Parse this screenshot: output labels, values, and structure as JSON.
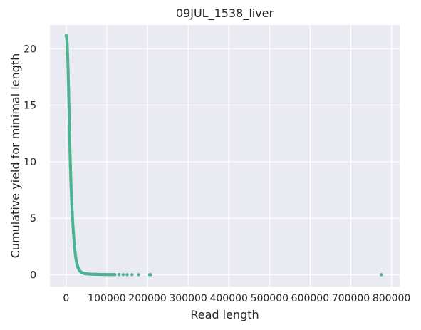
{
  "chart_data": {
    "type": "scatter",
    "title": "09JUL_1538_liver",
    "xlabel": "Read length",
    "ylabel": "Cumulative yield for minimal length",
    "xlim": [
      -40000,
      820000
    ],
    "ylim": [
      -1.05,
      22.1
    ],
    "x_ticks": [
      0,
      100000,
      200000,
      300000,
      400000,
      500000,
      600000,
      700000,
      800000
    ],
    "y_ticks": [
      0,
      5,
      10,
      15,
      20
    ],
    "grid": true,
    "background": "#eaeaf2",
    "grid_color": "#ffffff",
    "marker_color": "#4cb391",
    "series": [
      {
        "x": [
          0,
          500,
          1000,
          1500,
          2000,
          2500,
          3000,
          3500,
          4000,
          4500,
          5000,
          5500,
          6000,
          6500,
          7000,
          7500,
          8000,
          8500,
          9000,
          9500,
          10000,
          10500,
          11000,
          11500,
          12000,
          13000,
          14000,
          15000,
          16000,
          17000,
          18000,
          19000,
          20000,
          21000,
          22000,
          23000,
          24000,
          25000,
          26000,
          27000,
          28000,
          29000,
          30000,
          32000,
          34000,
          36000,
          38000,
          40000,
          43000,
          46000,
          50000,
          55000,
          60000,
          65000,
          70000,
          75000,
          80000,
          85000,
          90000,
          95000,
          100000,
          105000,
          110000,
          115000,
          120000,
          130000,
          140000,
          150000,
          162000,
          178000,
          205000,
          208000,
          775000
        ],
        "y": [
          21.15,
          21.12,
          21.05,
          20.9,
          20.7,
          20.4,
          20.0,
          19.5,
          19.0,
          18.4,
          17.8,
          17.1,
          16.4,
          15.6,
          14.8,
          14.0,
          13.2,
          12.4,
          11.6,
          10.9,
          10.2,
          9.6,
          9.0,
          8.4,
          7.9,
          7.0,
          6.2,
          5.5,
          4.8,
          4.2,
          3.7,
          3.2,
          2.75,
          2.35,
          2.0,
          1.7,
          1.45,
          1.23,
          1.05,
          0.9,
          0.77,
          0.66,
          0.56,
          0.42,
          0.32,
          0.25,
          0.2,
          0.16,
          0.12,
          0.1,
          0.08,
          0.06,
          0.05,
          0.04,
          0.035,
          0.03,
          0.025,
          0.02,
          0.018,
          0.015,
          0.012,
          0.01,
          0.009,
          0.008,
          0.007,
          0.006,
          0.005,
          0.004,
          0.003,
          0.002,
          0.0015,
          0.001,
          0.0005
        ]
      }
    ]
  }
}
